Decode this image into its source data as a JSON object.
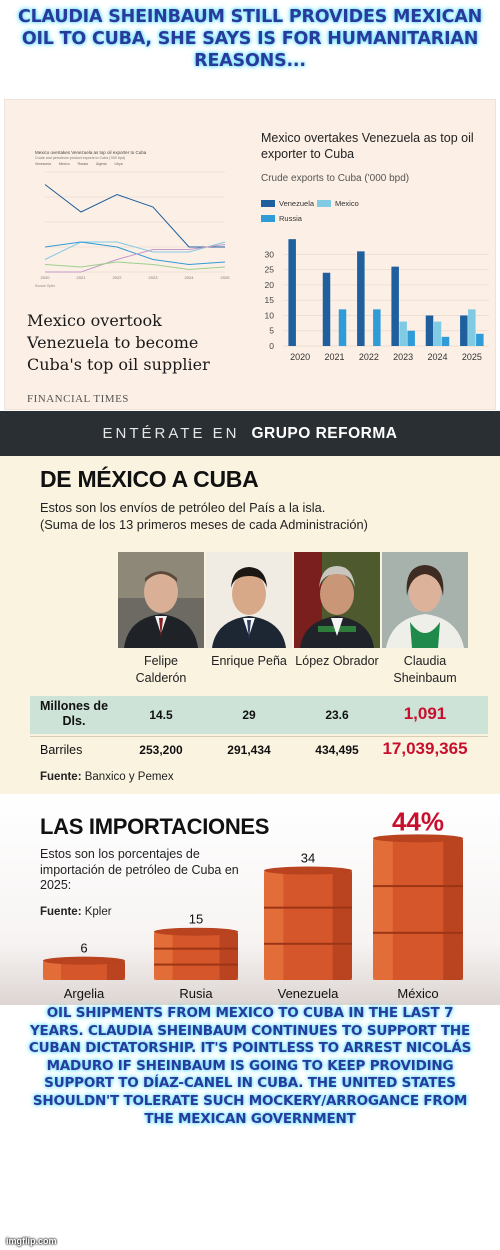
{
  "top_caption": "CLAUDIA SHEINBAUM STILL PROVIDES MEXICAN OIL TO CUBA, SHE SAYS IS FOR HUMANITARIAN REASONS...",
  "bottom_caption": "OIL SHIPMENTS FROM MEXICO TO CUBA IN THE LAST 7 YEARS. CLAUDIA SHEINBAUM CONTINUES TO SUPPORT THE CUBAN DICTATORSHIP. IT'S POINTLESS TO ARREST NICOLÁS MADURO IF SHEINBAUM IS GOING TO KEEP PROVIDING SUPPORT TO DÍAZ-CANEL IN CUBA. THE UNITED STATES SHOULDN'T TOLERATE SUCH MOCKERY/ARROGANCE FROM THE MEXICAN GOVERNMENT",
  "watermark": "imgflip.com",
  "ft": {
    "mini_title": "Mexico overtakes Venezuela as top oil exporter to Cuba",
    "mini_subtitle": "Crude and petroleum product exports to Cuba ('000 bpd)",
    "mini_legend": [
      "Venezuela",
      "Mexico",
      "Russia",
      "Algeria",
      "Libya"
    ],
    "mini_source": "Source: Kpler",
    "headline": "Mexico overtook Venezuela to become Cuba's top oil supplier",
    "brand": "FINANCIAL TIMES",
    "colors": {
      "venezuela": "#1f5f9e",
      "mexico": "#80cbe3",
      "russia": "#2f9cd8",
      "algeria": "#c49ac9",
      "libya": "#9bd08f",
      "background": "#fcefe5"
    }
  },
  "reforma": {
    "prefix": "ENTÉRATE EN",
    "brand": "GRUPO REFORMA"
  },
  "mexico_cuba": {
    "title": "DE MÉXICO A CUBA",
    "subtitle_1": "Estos son los envíos de petróleo del País a la isla.",
    "subtitle_2": "(Suma de los 13 primeros meses de cada Administración)",
    "row_a_label": "Millones de Dls.",
    "row_b_label": "Barriles",
    "source_label": "Fuente:",
    "source_text": "Banxico y Pemex",
    "highlight_color": "#c8102e"
  },
  "imports": {
    "title": "LAS IMPORTACIONES",
    "subtitle": "Estos son los porcentajes de importación de petróleo de Cuba en 2025:",
    "source_label": "Fuente:",
    "source_text": "Kpler"
  },
  "chart_data": [
    {
      "type": "line",
      "title": "Mexico overtakes Venezuela as top oil exporter to Cuba",
      "x": [
        "2020",
        "2021",
        "2022",
        "2023",
        "2024",
        "2025"
      ],
      "ylim": [
        0,
        40
      ],
      "series": [
        {
          "name": "Venezuela",
          "values": [
            35,
            24,
            31,
            26,
            10,
            10
          ]
        },
        {
          "name": "Mexico",
          "values": [
            5,
            12,
            12,
            8,
            8,
            12
          ]
        },
        {
          "name": "Russia",
          "values": [
            10,
            12,
            10,
            5,
            3,
            4
          ]
        },
        {
          "name": "Algeria",
          "values": [
            0,
            0,
            5,
            9,
            9,
            11
          ]
        },
        {
          "name": "Libya",
          "values": [
            3,
            2,
            4,
            3,
            1,
            2
          ]
        }
      ]
    },
    {
      "type": "bar",
      "title": "Mexico overtakes Venezuela as top oil exporter to Cuba",
      "subtitle": "Crude exports to Cuba ('000 bpd)",
      "categories": [
        "2020",
        "2021",
        "2022",
        "2023",
        "2024",
        "2025"
      ],
      "yticks": [
        0,
        5,
        10,
        15,
        20,
        25,
        30
      ],
      "ylim": [
        0,
        38
      ],
      "series": [
        {
          "name": "Venezuela",
          "values": [
            35,
            24,
            31,
            26,
            10,
            10
          ]
        },
        {
          "name": "Mexico",
          "values": [
            0,
            0,
            0,
            8,
            8,
            12
          ]
        },
        {
          "name": "Russia",
          "values": [
            0,
            12,
            12,
            5,
            3,
            4
          ]
        }
      ]
    },
    {
      "type": "table",
      "title": "DE MÉXICO A CUBA",
      "columns": [
        "Felipe Calderón",
        "Enrique Peña",
        "López Obrador",
        "Claudia Sheinbaum"
      ],
      "rows": [
        {
          "label": "Millones de Dls.",
          "values": [
            "14.5",
            "29",
            "23.6",
            "1,091"
          ]
        },
        {
          "label": "Barriles",
          "values": [
            "253,200",
            "291,434",
            "434,495",
            "17,039,365"
          ]
        }
      ]
    },
    {
      "type": "bar",
      "title": "LAS IMPORTACIONES",
      "categories": [
        "Argelia",
        "Rusia",
        "Venezuela",
        "México"
      ],
      "values": [
        6,
        15,
        34,
        44
      ],
      "labels": [
        "6",
        "15",
        "34",
        "44%"
      ],
      "ylim": [
        0,
        50
      ]
    }
  ]
}
